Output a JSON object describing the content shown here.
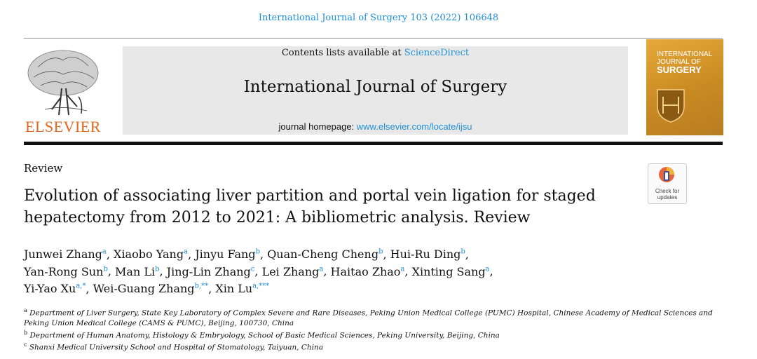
{
  "citation": "International Journal of Surgery 103 (2022) 106648",
  "masthead": {
    "contents_prefix": "Contents lists available at ",
    "contents_link": "ScienceDirect",
    "journal_title": "International Journal of Surgery",
    "homepage_prefix": "journal homepage: ",
    "homepage_link": "www.elsevier.com/locate/ijsu"
  },
  "publisher": "ELSEVIER",
  "cover": {
    "line1": "INTERNATIONAL",
    "line2": "JOURNAL OF",
    "line3": "SURGERY"
  },
  "badge": {
    "line1": "Check for",
    "line2": "updates"
  },
  "section_label": "Review",
  "title": "Evolution of associating liver partition and portal vein ligation for staged hepatectomy from 2012 to 2021: A bibliometric analysis. Review",
  "authors": [
    {
      "name": "Junwei Zhang",
      "sup": "a",
      "sep": ", "
    },
    {
      "name": "Xiaobo Yang",
      "sup": "a",
      "sep": ", "
    },
    {
      "name": "Jinyu Fang",
      "sup": "b",
      "sep": ", "
    },
    {
      "name": "Quan-Cheng Cheng",
      "sup": "b",
      "sep": ", "
    },
    {
      "name": "Hui-Ru Ding",
      "sup": "b",
      "sep": ","
    },
    {
      "name": "Yan-Rong Sun",
      "sup": "b",
      "sep": ", "
    },
    {
      "name": "Man Li",
      "sup": "b",
      "sep": ", "
    },
    {
      "name": "Jing-Lin Zhang",
      "sup": "c",
      "sep": ", "
    },
    {
      "name": "Lei Zhang",
      "sup": "a",
      "sep": ", "
    },
    {
      "name": "Haitao Zhao",
      "sup": "a",
      "sep": ", "
    },
    {
      "name": "Xinting Sang",
      "sup": "a",
      "sep": ","
    },
    {
      "name": "Yi-Yao Xu",
      "sup": "a,*",
      "sep": ", "
    },
    {
      "name": "Wei-Guang Zhang",
      "sup": "b,**",
      "sep": ", "
    },
    {
      "name": "Xin Lu",
      "sup": "a,***",
      "sep": ""
    }
  ],
  "affiliations": [
    {
      "mark": "a",
      "text": "Department of Liver Surgery, State Key Laboratory of Complex Severe and Rare Diseases, Peking Union Medical College (PUMC) Hospital, Chinese Academy of Medical Sciences and Peking Union Medical College (CAMS & PUMC), Beijing, 100730, China"
    },
    {
      "mark": "b",
      "text": "Department of Human Anatomy, Histology & Embryology, School of Basic Medical Sciences, Peking University, Beijing, China"
    },
    {
      "mark": "c",
      "text": "Shanxi Medical University School and Hospital of Stomatology, Taiyuan, China"
    }
  ],
  "colors": {
    "link": "#1f8fd6",
    "publisher": "#e2681b",
    "cover": "#d79a2e",
    "masthead_bg": "#e8e8e8"
  }
}
